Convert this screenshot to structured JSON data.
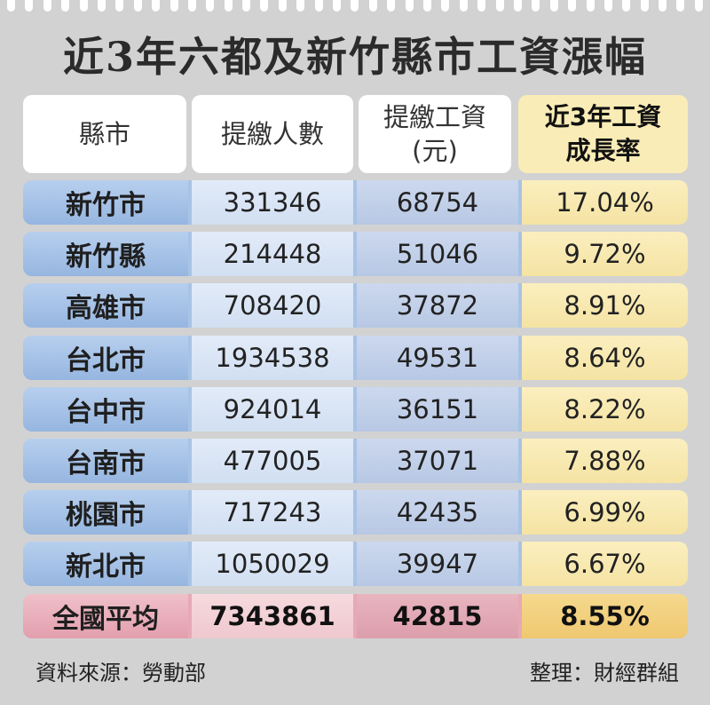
{
  "title": "近3年六都及新竹縣市工資漲幅",
  "headers": {
    "county": "縣市",
    "population": "提繳人數",
    "wage_line1": "提繳工資",
    "wage_line2": "(元)",
    "rate_line1": "近3年工資",
    "rate_line2": "成長率"
  },
  "chart_data": {
    "type": "table",
    "title": "近3年六都及新竹縣市工資漲幅",
    "columns": [
      "縣市",
      "提繳人數",
      "提繳工資(元)",
      "近3年工資成長率"
    ],
    "rows": [
      {
        "name": "新竹市",
        "population": "331346",
        "wage": "68754",
        "rate": "17.04%"
      },
      {
        "name": "新竹縣",
        "population": "214448",
        "wage": "51046",
        "rate": "9.72%"
      },
      {
        "name": "高雄市",
        "population": "708420",
        "wage": "37872",
        "rate": "8.91%"
      },
      {
        "name": "台北市",
        "population": "1934538",
        "wage": "49531",
        "rate": "8.64%"
      },
      {
        "name": "台中市",
        "population": "924014",
        "wage": "36151",
        "rate": "8.22%"
      },
      {
        "name": "台南市",
        "population": "477005",
        "wage": "37071",
        "rate": "7.88%"
      },
      {
        "name": "桃園市",
        "population": "717243",
        "wage": "42435",
        "rate": "6.99%"
      },
      {
        "name": "新北市",
        "population": "1050029",
        "wage": "39947",
        "rate": "6.67%"
      }
    ],
    "total": {
      "name": "全國平均",
      "population": "7343861",
      "wage": "42815",
      "rate": "8.55%"
    }
  },
  "footer": {
    "source": "資料來源：勞動部",
    "editor": "整理：財經群組"
  }
}
